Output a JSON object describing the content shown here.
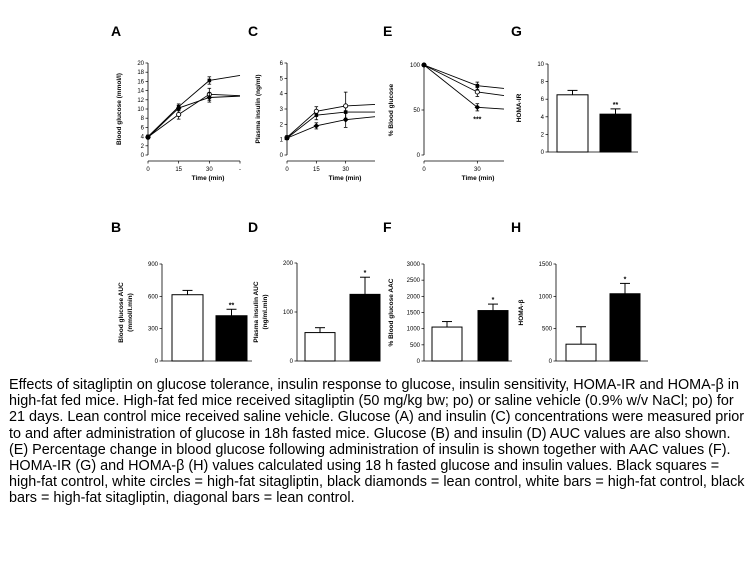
{
  "chart_data": [
    {
      "panel": "A",
      "type": "line",
      "ylabel": "Blood glucose (mmol/l)",
      "xlabel": "Time (min)",
      "xlim": [
        0,
        45
      ],
      "ylim": [
        0,
        20
      ],
      "xticks": [
        "0",
        "15",
        "30",
        "-"
      ],
      "yticks": [
        "0",
        "2",
        "4",
        "6",
        "8",
        "10",
        "12",
        "14",
        "16",
        "18",
        "20"
      ],
      "series": [
        {
          "marker": "square-filled",
          "x": [
            0,
            15,
            30,
            45
          ],
          "y": [
            4,
            10.5,
            16.2,
            17.3
          ],
          "err": [
            0.3,
            0.6,
            0.8,
            0
          ]
        },
        {
          "marker": "circle-open",
          "x": [
            0,
            15,
            30,
            45
          ],
          "y": [
            3.9,
            8.8,
            13.2,
            12.9
          ],
          "err": [
            0.3,
            1,
            1.3,
            0
          ]
        },
        {
          "marker": "diamond-filled",
          "x": [
            0,
            15,
            30,
            45
          ],
          "y": [
            3.8,
            10.2,
            12.5,
            12.8
          ],
          "err": [
            0.3,
            0.6,
            1,
            0
          ]
        }
      ],
      "annotations": []
    },
    {
      "panel": "C",
      "type": "line",
      "ylabel": "Plasma insulin (ng/ml)",
      "xlabel": "Time (min)",
      "xlim": [
        0,
        45
      ],
      "ylim": [
        0,
        6
      ],
      "xticks": [
        "0",
        "15",
        "30"
      ],
      "yticks": [
        "0",
        "1",
        "2",
        "3",
        "4",
        "5",
        "6"
      ],
      "series": [
        {
          "marker": "square-filled",
          "x": [
            0,
            15,
            30,
            45
          ],
          "y": [
            1.1,
            2.6,
            2.8,
            2.8
          ],
          "err": [
            0.1,
            0.3,
            0.4,
            0
          ]
        },
        {
          "marker": "circle-open",
          "x": [
            0,
            15,
            30,
            45
          ],
          "y": [
            1.15,
            2.85,
            3.2,
            3.3
          ],
          "err": [
            0.1,
            0.3,
            0.9,
            0
          ]
        },
        {
          "marker": "diamond-filled",
          "x": [
            0,
            15,
            30,
            45
          ],
          "y": [
            1.1,
            1.9,
            2.3,
            2.5
          ],
          "err": [
            0.1,
            0.2,
            0.5,
            0
          ]
        }
      ],
      "annotations": []
    },
    {
      "panel": "E",
      "type": "line",
      "ylabel": "% Blood glucose",
      "xlabel": "Time (min)",
      "xlim": [
        0,
        45
      ],
      "ylim": [
        0,
        100
      ],
      "xticks": [
        "0",
        "30"
      ],
      "yticks": [
        "0",
        "50",
        "100"
      ],
      "series": [
        {
          "marker": "square-filled",
          "x": [
            0,
            30,
            45
          ],
          "y": [
            100,
            77,
            74
          ],
          "err": [
            0,
            4,
            0
          ]
        },
        {
          "marker": "circle-open",
          "x": [
            0,
            30,
            45
          ],
          "y": [
            100,
            70,
            66
          ],
          "err": [
            0,
            5,
            0
          ]
        },
        {
          "marker": "diamond-filled",
          "x": [
            0,
            30,
            45
          ],
          "y": [
            100,
            53,
            51
          ],
          "err": [
            0,
            4,
            0
          ]
        }
      ],
      "annotations": [
        {
          "text": "***",
          "x": 30,
          "y": 44
        }
      ]
    },
    {
      "panel": "G",
      "type": "bar",
      "ylabel": "HOMA-IR",
      "ylim": [
        0,
        10
      ],
      "yticks": [
        "0",
        "2",
        "4",
        "6",
        "8",
        "10"
      ],
      "categories": [
        "",
        ""
      ],
      "values": [
        6.5,
        4.3
      ],
      "err": [
        0.5,
        0.6
      ],
      "fills": [
        "#ffffff",
        "#000000"
      ],
      "annotations": [
        {
          "text": "**",
          "bar": 1
        }
      ]
    },
    {
      "panel": "B",
      "type": "bar",
      "ylabel": "Blood glucose AUC",
      "ylabel2": "(mmol/l.min)",
      "ylim": [
        0,
        900
      ],
      "yticks": [
        "0",
        "300",
        "600",
        "900"
      ],
      "categories": [
        "",
        ""
      ],
      "values": [
        615,
        420
      ],
      "err": [
        40,
        60
      ],
      "fills": [
        "#ffffff",
        "#000000"
      ],
      "annotations": [
        {
          "text": "**",
          "bar": 1
        }
      ]
    },
    {
      "panel": "D",
      "type": "bar",
      "ylabel": "Plasma insulin AUC",
      "ylabel2": "(ng/ml.min)",
      "ylim": [
        0,
        200
      ],
      "yticks": [
        "0",
        "100",
        "200"
      ],
      "categories": [
        "",
        ""
      ],
      "values": [
        58,
        136
      ],
      "err": [
        10,
        35
      ],
      "fills": [
        "#ffffff",
        "#000000"
      ],
      "annotations": [
        {
          "text": "*",
          "bar": 1
        }
      ]
    },
    {
      "panel": "F",
      "type": "bar",
      "ylabel": "% Blood glucose AAC",
      "ylim": [
        0,
        3000
      ],
      "yticks": [
        "0",
        "500",
        "1000",
        "1500",
        "2000",
        "2500",
        "3000"
      ],
      "categories": [
        "",
        ""
      ],
      "values": [
        1050,
        1560
      ],
      "err": [
        170,
        200
      ],
      "fills": [
        "#ffffff",
        "#000000"
      ],
      "annotations": [
        {
          "text": "*",
          "bar": 1
        }
      ]
    },
    {
      "panel": "H",
      "type": "bar",
      "ylabel": "HOMA-β",
      "ylim": [
        0,
        1500
      ],
      "yticks": [
        "0",
        "500",
        "1000",
        "1500"
      ],
      "categories": [
        "",
        ""
      ],
      "values": [
        260,
        1040
      ],
      "err": [
        270,
        160
      ],
      "fills": [
        "#ffffff",
        "#000000"
      ],
      "annotations": [
        {
          "text": "*",
          "bar": 1
        }
      ]
    }
  ],
  "caption": "Effects of sitagliptin on glucose tolerance, insulin response to glucose, insulin sensitivity, HOMA-IR and HOMA-β in high-fat fed mice. High-fat fed mice received sitagliptin (50 mg/kg bw; po) or saline vehicle (0.9% w/v NaCl; po) for 21 days. Lean control mice received saline vehicle. Glucose (A) and insulin (C) concentrations were measured prior to and after administration of glucose  in 18h fasted mice. Glucose (B) and insulin (D) AUC values are also shown. (E) Percentage change in blood glucose following administration of insulin is shown together with AAC values (F). HOMA-IR (G) and HOMA-β (H) values calculated using 18 h fasted glucose and insulin values.  Black squares = high-fat control, white circles = high-fat sitagliptin, black diamonds = lean control, white bars = high-fat control, black bars = high-fat sitagliptin, diagonal bars = lean control."
}
